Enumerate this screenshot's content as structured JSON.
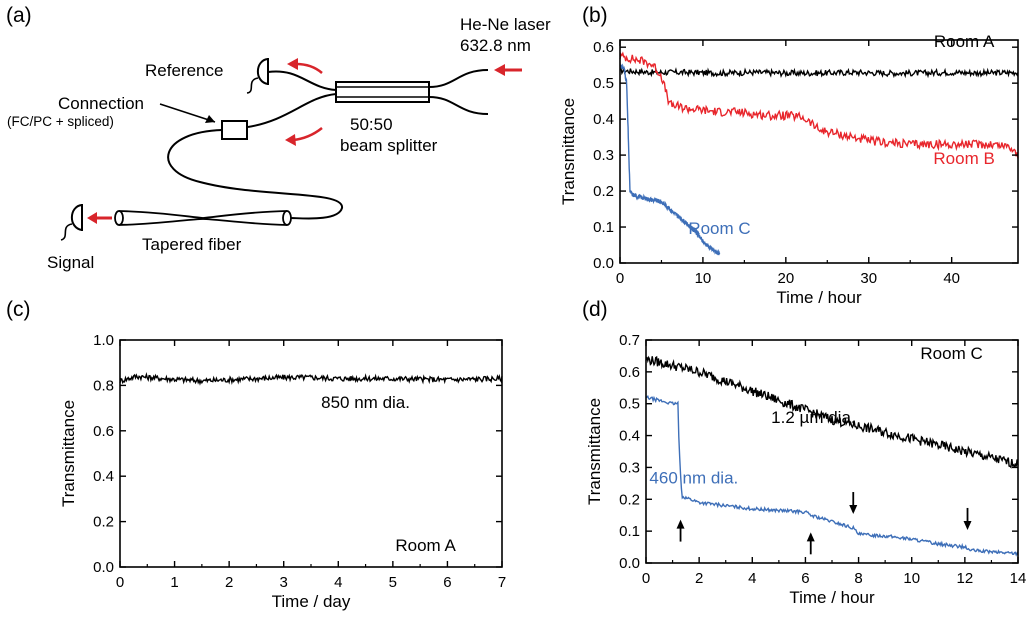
{
  "panels": {
    "a": {
      "letter": "(a)",
      "labels": {
        "reference": "Reference",
        "laser": "He-Ne laser",
        "wavelength": "632.8 nm",
        "connection": "Connection",
        "connection_detail": "(FC/PC + spliced)",
        "splitter_ratio": "50:50",
        "splitter": "beam splitter",
        "tapered": "Tapered fiber",
        "signal": "Signal"
      },
      "colors": {
        "arrow": "#d8252b",
        "line": "#000000"
      }
    },
    "b": {
      "letter": "(b)"
    },
    "c": {
      "letter": "(c)"
    },
    "d": {
      "letter": "(d)"
    }
  },
  "chart_data": [
    {
      "id": "b",
      "type": "line",
      "xlabel": "Time / hour",
      "ylabel": "Transmittance",
      "xlim": [
        0,
        48
      ],
      "ylim": [
        0,
        0.62
      ],
      "xticks": [
        0,
        10,
        20,
        30,
        40
      ],
      "yticks": [
        0.0,
        0.1,
        0.2,
        0.3,
        0.4,
        0.5,
        0.6
      ],
      "series": [
        {
          "name": "Room A",
          "color": "#000000",
          "x": [
            0,
            4,
            8,
            12,
            16,
            20,
            24,
            28,
            32,
            36,
            40,
            44,
            48
          ],
          "y": [
            0.535,
            0.53,
            0.53,
            0.528,
            0.53,
            0.528,
            0.528,
            0.53,
            0.528,
            0.528,
            0.53,
            0.528,
            0.53
          ],
          "noise": 0.008
        },
        {
          "name": "Room B",
          "color": "#e8262c",
          "x": [
            0,
            1,
            2,
            3,
            4,
            5,
            6,
            8,
            10,
            12,
            14,
            16,
            18,
            20,
            22,
            23,
            24,
            26,
            28,
            30,
            32,
            35,
            38,
            42,
            45,
            47,
            48
          ],
          "y": [
            0.575,
            0.57,
            0.565,
            0.56,
            0.55,
            0.52,
            0.44,
            0.43,
            0.425,
            0.42,
            0.42,
            0.415,
            0.41,
            0.41,
            0.405,
            0.39,
            0.37,
            0.36,
            0.35,
            0.34,
            0.335,
            0.33,
            0.33,
            0.33,
            0.33,
            0.325,
            0.3
          ],
          "noise": 0.012
        },
        {
          "name": "Room C",
          "color": "#3e6fb8",
          "x": [
            0,
            0.5,
            0.8,
            1.0,
            1.2,
            1.5,
            3,
            5,
            6,
            7,
            8,
            9,
            10,
            11,
            12
          ],
          "y": [
            0.55,
            0.54,
            0.5,
            0.35,
            0.2,
            0.19,
            0.18,
            0.17,
            0.15,
            0.13,
            0.11,
            0.09,
            0.06,
            0.04,
            0.025
          ],
          "noise": 0.006
        }
      ],
      "annotations": [
        {
          "text": "Room A",
          "x": 41.5,
          "y": 0.6,
          "color": "#000000"
        },
        {
          "text": "Room B",
          "x": 41.5,
          "y": 0.275,
          "color": "#e8262c"
        },
        {
          "text": "Room C",
          "x": 12,
          "y": 0.08,
          "color": "#3e6fb8"
        }
      ]
    },
    {
      "id": "c",
      "type": "line",
      "xlabel": "Time / day",
      "ylabel": "Transmittance",
      "xlim": [
        0,
        7
      ],
      "ylim": [
        0,
        1.0
      ],
      "xticks": [
        0,
        1,
        2,
        3,
        4,
        5,
        6,
        7
      ],
      "yticks": [
        0.0,
        0.2,
        0.4,
        0.6,
        0.8,
        1.0
      ],
      "series": [
        {
          "name": "850 nm dia.",
          "color": "#000000",
          "x": [
            0,
            0.3,
            0.8,
            1.5,
            2.0,
            2.5,
            3.0,
            3.5,
            4.0,
            5.0,
            6.0,
            7.0
          ],
          "y": [
            0.82,
            0.84,
            0.83,
            0.82,
            0.825,
            0.83,
            0.835,
            0.835,
            0.83,
            0.83,
            0.825,
            0.83
          ],
          "noise": 0.012
        }
      ],
      "annotations": [
        {
          "text": "850 nm dia.",
          "x": 4.5,
          "y": 0.7,
          "color": "#000000"
        },
        {
          "text": "Room A",
          "x": 5.6,
          "y": 0.07,
          "color": "#000000"
        }
      ]
    },
    {
      "id": "d",
      "type": "line",
      "xlabel": "Time / hour",
      "ylabel": "Transmittance",
      "xlim": [
        0,
        14
      ],
      "ylim": [
        0,
        0.7
      ],
      "xticks": [
        0,
        2,
        4,
        6,
        8,
        10,
        12,
        14
      ],
      "yticks": [
        0.0,
        0.1,
        0.2,
        0.3,
        0.4,
        0.5,
        0.6,
        0.7
      ],
      "series": [
        {
          "name": "1.2 µm dia.",
          "color": "#000000",
          "x": [
            0,
            1,
            2,
            3,
            4,
            5,
            6,
            7,
            8,
            9,
            10,
            11,
            12,
            13,
            14
          ],
          "y": [
            0.64,
            0.62,
            0.6,
            0.57,
            0.54,
            0.51,
            0.48,
            0.45,
            0.43,
            0.41,
            0.39,
            0.37,
            0.35,
            0.33,
            0.31
          ],
          "noise": 0.015
        },
        {
          "name": "460 nm dia.",
          "color": "#3e6fb8",
          "x": [
            0,
            0.5,
            1.0,
            1.2,
            1.25,
            1.35,
            2.0,
            3.0,
            4.0,
            5.0,
            6.0,
            6.2,
            7.0,
            7.8,
            8.0,
            9.0,
            10.0,
            11.0,
            12.0,
            12.2,
            13.0,
            14.0
          ],
          "y": [
            0.52,
            0.51,
            0.5,
            0.5,
            0.35,
            0.21,
            0.19,
            0.18,
            0.17,
            0.165,
            0.16,
            0.15,
            0.13,
            0.11,
            0.09,
            0.085,
            0.075,
            0.06,
            0.05,
            0.04,
            0.035,
            0.03
          ],
          "noise": 0.005
        }
      ],
      "annotations": [
        {
          "text": "Room C",
          "x": 11.5,
          "y": 0.64,
          "color": "#000000"
        },
        {
          "text": "1.2 µm dia.",
          "x": 6.3,
          "y": 0.44,
          "color": "#000000"
        },
        {
          "text": "460 nm dia.",
          "x": 1.8,
          "y": 0.25,
          "color": "#3e6fb8"
        }
      ],
      "arrows": [
        {
          "x": 1.3,
          "y": 0.13,
          "direction": "up"
        },
        {
          "x": 6.2,
          "y": 0.09,
          "direction": "up"
        },
        {
          "x": 7.8,
          "y": 0.16,
          "direction": "down"
        },
        {
          "x": 12.1,
          "y": 0.11,
          "direction": "down"
        }
      ]
    }
  ]
}
